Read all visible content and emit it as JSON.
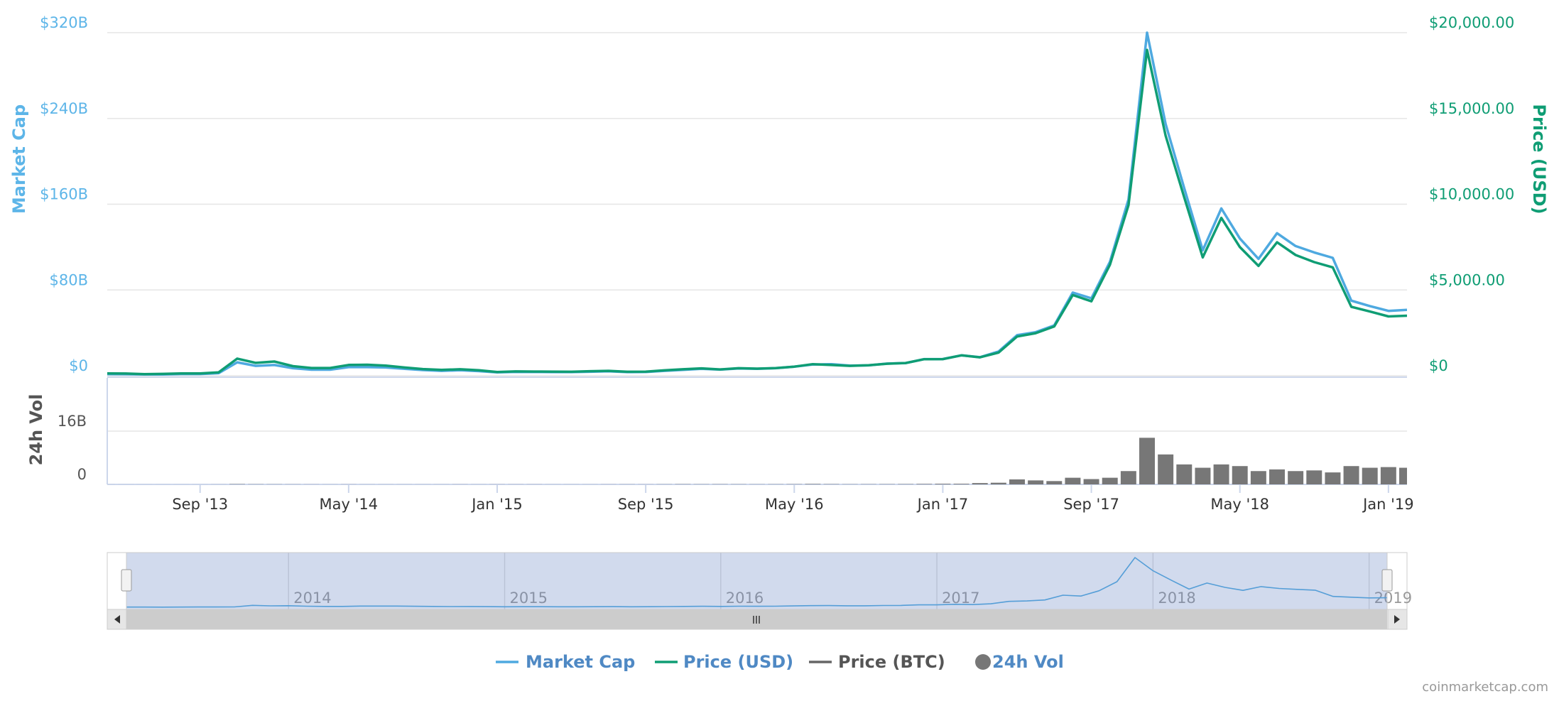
{
  "chart_data": {
    "type": "line",
    "ylabel": "Market Cap",
    "y2label": "Price (USD)",
    "y3label": "24h Vol",
    "credits": "coinmarketcap.com",
    "x": [
      "2013-04",
      "2013-05",
      "2013-06",
      "2013-07",
      "2013-08",
      "2013-09",
      "2013-10",
      "2013-11",
      "2013-12",
      "2014-01",
      "2014-02",
      "2014-03",
      "2014-04",
      "2014-05",
      "2014-06",
      "2014-07",
      "2014-08",
      "2014-09",
      "2014-10",
      "2014-11",
      "2014-12",
      "2015-01",
      "2015-02",
      "2015-03",
      "2015-04",
      "2015-05",
      "2015-06",
      "2015-07",
      "2015-08",
      "2015-09",
      "2015-10",
      "2015-11",
      "2015-12",
      "2016-01",
      "2016-02",
      "2016-03",
      "2016-04",
      "2016-05",
      "2016-06",
      "2016-07",
      "2016-08",
      "2016-09",
      "2016-10",
      "2016-11",
      "2016-12",
      "2017-01",
      "2017-02",
      "2017-03",
      "2017-04",
      "2017-05",
      "2017-06",
      "2017-07",
      "2017-08",
      "2017-09",
      "2017-10",
      "2017-11",
      "2017-12",
      "2018-01",
      "2018-02",
      "2018-03",
      "2018-04",
      "2018-05",
      "2018-06",
      "2018-07",
      "2018-08",
      "2018-09",
      "2018-10",
      "2018-11",
      "2018-12",
      "2019-01",
      "2019-02"
    ],
    "xlim": [
      "2013-04",
      "2019-02"
    ],
    "xticks": [
      {
        "value": "2013-09",
        "label": "Sep '13"
      },
      {
        "value": "2014-05",
        "label": "May '14"
      },
      {
        "value": "2015-01",
        "label": "Jan '15"
      },
      {
        "value": "2015-09",
        "label": "Sep '15"
      },
      {
        "value": "2016-05",
        "label": "May '16"
      },
      {
        "value": "2017-01",
        "label": "Jan '17"
      },
      {
        "value": "2017-09",
        "label": "Sep '17"
      },
      {
        "value": "2018-05",
        "label": "May '18"
      },
      {
        "value": "2019-01",
        "label": "Jan '19"
      }
    ],
    "ylim": [
      0,
      320
    ],
    "yticks": [
      {
        "value": 0,
        "label": "$0"
      },
      {
        "value": 80,
        "label": "$80B"
      },
      {
        "value": 160,
        "label": "$160B"
      },
      {
        "value": 240,
        "label": "$240B"
      },
      {
        "value": 320,
        "label": "$320B"
      }
    ],
    "y2lim": [
      0,
      20000
    ],
    "y2ticks": [
      {
        "value": 0,
        "label": "$0"
      },
      {
        "value": 5000,
        "label": "$5,000.00"
      },
      {
        "value": 10000,
        "label": "$10,000.00"
      },
      {
        "value": 15000,
        "label": "$15,000.00"
      },
      {
        "value": 20000,
        "label": "$20,000.00"
      }
    ],
    "y3lim": [
      0,
      32
    ],
    "y3ticks": [
      0,
      {
        "value": 16,
        "label": "16B"
      }
    ],
    "grid": true,
    "legend": "bottom",
    "series": [
      {
        "name": "Market Cap",
        "color": "#4ea9e0",
        "axis": "y",
        "values": [
          1.5,
          1.4,
          1.1,
          1.2,
          1.6,
          1.6,
          2.4,
          12.5,
          9.2,
          10.0,
          7.0,
          5.6,
          5.6,
          8.0,
          8.0,
          7.7,
          6.5,
          5.3,
          4.6,
          5.1,
          4.3,
          3.2,
          3.6,
          3.5,
          3.4,
          3.4,
          3.7,
          4.2,
          3.4,
          3.5,
          4.6,
          5.5,
          6.4,
          5.7,
          6.8,
          6.5,
          7.0,
          8.5,
          10.5,
          10.8,
          9.4,
          9.7,
          11.3,
          11.8,
          15.5,
          15.6,
          19.0,
          17.3,
          22.6,
          37.8,
          40.6,
          47.0,
          77.6,
          72.2,
          106.2,
          164.6,
          320,
          235,
          175,
          117,
          156,
          128,
          109,
          133,
          121,
          115,
          110,
          70,
          65,
          60.5,
          61.4
        ]
      },
      {
        "name": "Price (USD)",
        "color": "#0f9d74",
        "axis": "y2",
        "values": [
          135,
          129,
          97,
          106,
          135,
          133,
          198,
          1000,
          750,
          830,
          560,
          450,
          450,
          630,
          640,
          590,
          480,
          390,
          340,
          378,
          320,
          217,
          254,
          244,
          236,
          230,
          263,
          284,
          230,
          236,
          314,
          378,
          430,
          368,
          437,
          416,
          448,
          531,
          673,
          624,
          575,
          609,
          700,
          742,
          963,
          970,
          1190,
          1071,
          1348,
          2286,
          2480,
          2875,
          4703,
          4338,
          6468,
          9946,
          19000,
          14000,
          10400,
          6900,
          9200,
          7500,
          6400,
          7780,
          7040,
          6625,
          6320,
          4017,
          3742,
          3457,
          3500
        ]
      },
      {
        "name": "Price (BTC)",
        "color": "#666666"
      },
      {
        "name": "24h Vol",
        "color": "#777777",
        "axis": "y3",
        "type": "bar",
        "values": [
          0.01,
          0.01,
          0.01,
          0.01,
          0.01,
          0.01,
          0.02,
          0.1,
          0.06,
          0.05,
          0.04,
          0.03,
          0.02,
          0.03,
          0.02,
          0.02,
          0.02,
          0.02,
          0.02,
          0.03,
          0.02,
          0.03,
          0.03,
          0.03,
          0.02,
          0.02,
          0.02,
          0.03,
          0.04,
          0.03,
          0.05,
          0.08,
          0.06,
          0.07,
          0.06,
          0.05,
          0.06,
          0.08,
          0.14,
          0.09,
          0.06,
          0.07,
          0.08,
          0.1,
          0.15,
          0.2,
          0.2,
          0.4,
          0.5,
          1.5,
          1.2,
          1.0,
          2.0,
          1.6,
          2.0,
          4.0,
          14.0,
          9.0,
          6.0,
          5.0,
          6.0,
          5.5,
          4.0,
          4.5,
          4.0,
          4.2,
          3.6,
          5.5,
          5.0,
          5.2,
          5.0
        ]
      }
    ],
    "navigator": {
      "xticks": [
        {
          "value": "2014-01",
          "label": "2014"
        },
        {
          "value": "2015-01",
          "label": "2015"
        },
        {
          "value": "2016-01",
          "label": "2016"
        },
        {
          "value": "2017-01",
          "label": "2017"
        },
        {
          "value": "2018-01",
          "label": "2018"
        },
        {
          "value": "2019-01",
          "label": "2019"
        }
      ]
    }
  }
}
